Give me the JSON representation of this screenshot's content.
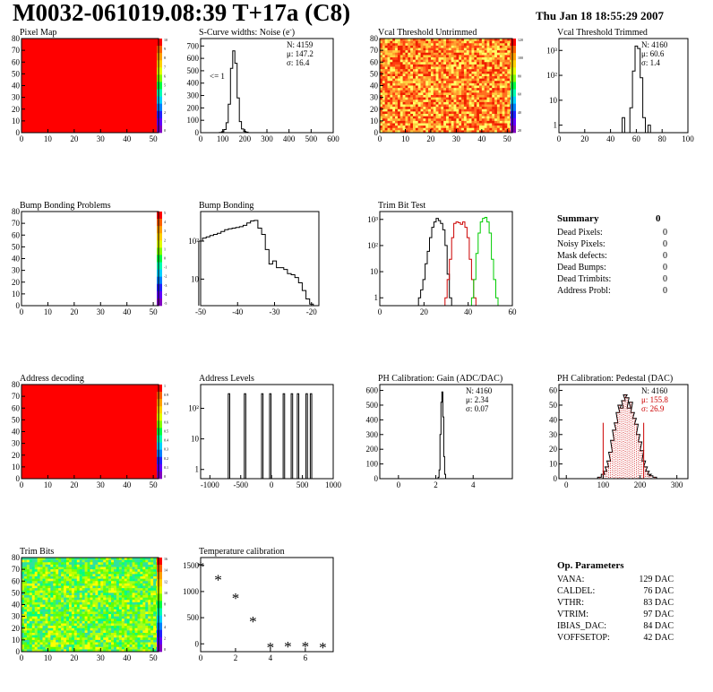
{
  "header": {
    "title": "M0032-061019.08:39 T+17a (C8)",
    "date": "Thu Jan 18 18:55:29 2007"
  },
  "chart_data": [
    {
      "id": "pixel-map",
      "type": "heatmap",
      "title": "Pixel Map",
      "fill": "#ff0000",
      "xticks": [
        "0",
        "10",
        "20",
        "30",
        "40",
        "50"
      ],
      "yticks": [
        "0",
        "10",
        "20",
        "30",
        "40",
        "50",
        "60",
        "70",
        "80"
      ],
      "xlim": [
        0,
        52
      ],
      "ylim": [
        0,
        80
      ],
      "zticks": [
        "10",
        "9",
        "8",
        "7",
        "6",
        "5",
        "4",
        "3",
        "2",
        "1",
        "0"
      ]
    },
    {
      "id": "s-curve",
      "type": "histogram",
      "title": "S-Curve widths: Noise (e",
      "title_sup": "-",
      "title_close": ")",
      "xticks": [
        "0",
        "100",
        "200",
        "300",
        "400",
        "500",
        "600"
      ],
      "yticks": [
        "0",
        "100",
        "200",
        "300",
        "400",
        "500",
        "600",
        "700"
      ],
      "xlim": [
        0,
        600
      ],
      "ylim": [
        0,
        760
      ],
      "stats": [
        "N: 4159",
        "μ: 147.2",
        "σ: 16.4"
      ],
      "annotation": "<= 1",
      "bins": [
        [
          80,
          0
        ],
        [
          90,
          2
        ],
        [
          100,
          8
        ],
        [
          110,
          25
        ],
        [
          120,
          80
        ],
        [
          130,
          230
        ],
        [
          140,
          520
        ],
        [
          150,
          660
        ],
        [
          160,
          560
        ],
        [
          170,
          280
        ],
        [
          180,
          90
        ],
        [
          190,
          30
        ],
        [
          200,
          10
        ],
        [
          210,
          4
        ],
        [
          220,
          0
        ]
      ]
    },
    {
      "id": "vcal-untrimmed",
      "type": "heatmap",
      "title": "Vcal Threshold Untrimmed",
      "xticks": [
        "0",
        "10",
        "20",
        "30",
        "40",
        "50"
      ],
      "yticks": [
        "0",
        "10",
        "20",
        "30",
        "40",
        "50",
        "60",
        "70",
        "80"
      ],
      "xlim": [
        0,
        52
      ],
      "ylim": [
        0,
        80
      ],
      "zticks": [
        "120",
        "100",
        "80",
        "60",
        "40",
        "20"
      ]
    },
    {
      "id": "vcal-trimmed",
      "type": "histogram",
      "log": true,
      "title": "Vcal Threshold Trimmed",
      "xticks": [
        "0",
        "20",
        "40",
        "60",
        "80",
        "100"
      ],
      "yticks": [
        "1",
        "10",
        "10²",
        "10³"
      ],
      "xlim": [
        0,
        100
      ],
      "ylim": [
        0.5,
        3000
      ],
      "stats": [
        "N: 4160",
        "μ: 60.6",
        "σ: 1.4"
      ],
      "bins": [
        [
          50,
          2
        ],
        [
          52,
          0
        ],
        [
          54,
          0
        ],
        [
          56,
          5
        ],
        [
          58,
          150
        ],
        [
          60,
          1500
        ],
        [
          62,
          1200
        ],
        [
          64,
          80
        ],
        [
          66,
          2
        ],
        [
          68,
          0
        ],
        [
          70,
          1
        ],
        [
          72,
          0
        ]
      ]
    },
    {
      "id": "bump-map",
      "type": "heatmap",
      "title": "Bump Bonding Problems",
      "fill": "#ffffff",
      "xticks": [
        "0",
        "10",
        "20",
        "30",
        "40",
        "50"
      ],
      "yticks": [
        "0",
        "10",
        "20",
        "30",
        "40",
        "50",
        "60",
        "70",
        "80"
      ],
      "xlim": [
        0,
        52
      ],
      "ylim": [
        0,
        80
      ],
      "zticks": [
        "5",
        "4",
        "3",
        "2",
        "1",
        "0",
        "-1",
        "-2",
        "-3",
        "-4",
        "-5"
      ]
    },
    {
      "id": "bump-bonding",
      "type": "histogram",
      "log": true,
      "title": "Bump Bonding",
      "xticks": [
        "-50",
        "-40",
        "-30",
        "-20"
      ],
      "yticks": [
        "10",
        "10²"
      ],
      "xlim": [
        -50,
        -18
      ],
      "ylim": [
        2,
        600
      ],
      "bins": [
        [
          -50,
          100
        ],
        [
          -49,
          120
        ],
        [
          -48,
          130
        ],
        [
          -47,
          140
        ],
        [
          -46,
          150
        ],
        [
          -45,
          160
        ],
        [
          -44,
          180
        ],
        [
          -43,
          200
        ],
        [
          -42,
          210
        ],
        [
          -41,
          220
        ],
        [
          -40,
          230
        ],
        [
          -39,
          240
        ],
        [
          -38,
          260
        ],
        [
          -37,
          300
        ],
        [
          -36,
          340
        ],
        [
          -35,
          350
        ],
        [
          -34,
          220
        ],
        [
          -33,
          150
        ],
        [
          -32,
          60
        ],
        [
          -31,
          25
        ],
        [
          -30,
          30
        ],
        [
          -29,
          20
        ],
        [
          -28,
          20
        ],
        [
          -27,
          18
        ],
        [
          -26,
          14
        ],
        [
          -25,
          13
        ],
        [
          -24,
          11
        ],
        [
          -23,
          8
        ],
        [
          -22,
          5
        ],
        [
          -21,
          3
        ],
        [
          -20,
          2.2
        ]
      ]
    },
    {
      "id": "trim-bit-test",
      "type": "histogram",
      "log": true,
      "title": "Trim Bit Test",
      "xticks": [
        "0",
        "20",
        "40",
        "60"
      ],
      "yticks": [
        "1",
        "10",
        "10²",
        "10³"
      ],
      "xlim": [
        0,
        60
      ],
      "ylim": [
        0.5,
        2000
      ],
      "series": [
        {
          "color": "#000000",
          "bins": [
            [
              18,
              1
            ],
            [
              19,
              2
            ],
            [
              20,
              5
            ],
            [
              21,
              20
            ],
            [
              22,
              60
            ],
            [
              23,
              200
            ],
            [
              24,
              500
            ],
            [
              25,
              800
            ],
            [
              26,
              1100
            ],
            [
              27,
              900
            ],
            [
              28,
              700
            ],
            [
              29,
              400
            ],
            [
              30,
              100
            ],
            [
              31,
              8
            ],
            [
              32,
              1
            ]
          ]
        },
        {
          "color": "#cc0000",
          "bins": [
            [
              30,
              1
            ],
            [
              31,
              5
            ],
            [
              32,
              30
            ],
            [
              33,
              200
            ],
            [
              34,
              700
            ],
            [
              35,
              800
            ],
            [
              36,
              750
            ],
            [
              37,
              650
            ],
            [
              38,
              800
            ],
            [
              39,
              500
            ],
            [
              40,
              200
            ],
            [
              41,
              30
            ],
            [
              42,
              5
            ],
            [
              43,
              1
            ]
          ]
        },
        {
          "color": "#00cc00",
          "bins": [
            [
              42,
              1
            ],
            [
              43,
              5
            ],
            [
              44,
              50
            ],
            [
              45,
              300
            ],
            [
              46,
              800
            ],
            [
              47,
              1100
            ],
            [
              48,
              1200
            ],
            [
              49,
              800
            ],
            [
              50,
              300
            ],
            [
              51,
              30
            ],
            [
              52,
              5
            ],
            [
              53,
              1
            ]
          ]
        }
      ]
    },
    {
      "id": "address-map",
      "type": "heatmap",
      "title": "Address decoding",
      "fill": "#ff0000",
      "xticks": [
        "0",
        "10",
        "20",
        "30",
        "40",
        "50"
      ],
      "yticks": [
        "0",
        "10",
        "20",
        "30",
        "40",
        "50",
        "60",
        "70",
        "80"
      ],
      "xlim": [
        0,
        52
      ],
      "ylim": [
        0,
        80
      ],
      "zticks": [
        "1",
        "0.9",
        "0.8",
        "0.7",
        "0.6",
        "0.5",
        "0.4",
        "0.3",
        "0.2",
        "0.1",
        "0"
      ]
    },
    {
      "id": "address-levels",
      "type": "spikes",
      "log": true,
      "title": "Address Levels",
      "xticks": [
        "-1000",
        "-500",
        "0",
        "500",
        "1000"
      ],
      "yticks": [
        "1",
        "10",
        "10²"
      ],
      "xlim": [
        -1150,
        1000
      ],
      "ylim": [
        0.5,
        600
      ],
      "peaks": [
        -690,
        -430,
        -150,
        -20,
        200,
        330,
        430,
        570,
        640
      ]
    },
    {
      "id": "ph-gain",
      "type": "histogram",
      "title": "PH Calibration: Gain (ADC/DAC)",
      "xticks": [
        "0",
        "2",
        "4"
      ],
      "yticks": [
        "0",
        "100",
        "200",
        "300",
        "400",
        "500",
        "600"
      ],
      "xlim": [
        -1,
        6.1
      ],
      "ylim": [
        0,
        640
      ],
      "stats": [
        "N: 4160",
        "μ: 2.34",
        "σ: 0.07"
      ],
      "bins": [
        [
          2.1,
          0
        ],
        [
          2.15,
          10
        ],
        [
          2.2,
          60
        ],
        [
          2.25,
          300
        ],
        [
          2.3,
          520
        ],
        [
          2.35,
          590
        ],
        [
          2.4,
          420
        ],
        [
          2.45,
          150
        ],
        [
          2.5,
          30
        ],
        [
          2.55,
          0
        ]
      ]
    },
    {
      "id": "ph-pedestal",
      "type": "histogram",
      "title": "PH Calibration: Pedestal (DAC)",
      "xticks": [
        "0",
        "100",
        "200",
        "300"
      ],
      "yticks": [
        "0",
        "10",
        "20",
        "30",
        "40",
        "50",
        "60"
      ],
      "xlim": [
        -20,
        330
      ],
      "ylim": [
        0,
        64
      ],
      "stats": [
        "N: 4160",
        "μ: 155.8",
        "σ: 26.9"
      ],
      "fit_color": "#cc0000",
      "bins": [
        [
          90,
          1
        ],
        [
          100,
          3
        ],
        [
          105,
          5
        ],
        [
          110,
          8
        ],
        [
          115,
          12
        ],
        [
          120,
          18
        ],
        [
          125,
          26
        ],
        [
          130,
          33
        ],
        [
          135,
          38
        ],
        [
          140,
          45
        ],
        [
          145,
          50
        ],
        [
          150,
          48
        ],
        [
          155,
          53
        ],
        [
          160,
          57
        ],
        [
          165,
          55
        ],
        [
          170,
          48
        ],
        [
          175,
          52
        ],
        [
          180,
          45
        ],
        [
          185,
          41
        ],
        [
          190,
          37
        ],
        [
          195,
          30
        ],
        [
          200,
          25
        ],
        [
          205,
          19
        ],
        [
          210,
          12
        ],
        [
          215,
          8
        ],
        [
          220,
          5
        ],
        [
          225,
          3
        ],
        [
          230,
          2
        ],
        [
          240,
          1
        ],
        [
          250,
          0
        ]
      ]
    },
    {
      "id": "trim-bits",
      "type": "heatmap",
      "title": "Trim Bits",
      "xticks": [
        "0",
        "10",
        "20",
        "30",
        "40",
        "50"
      ],
      "yticks": [
        "0",
        "10",
        "20",
        "30",
        "40",
        "50",
        "60",
        "70",
        "80"
      ],
      "xlim": [
        0,
        52
      ],
      "ylim": [
        0,
        80
      ],
      "zticks": [
        "16",
        "14",
        "12",
        "10",
        "8",
        "6",
        "4",
        "2",
        "0"
      ]
    },
    {
      "id": "temperature",
      "type": "scatter",
      "title": "Temperature calibration",
      "xticks": [
        "0",
        "2",
        "4",
        "6"
      ],
      "yticks": [
        "0",
        "500",
        "1000",
        "1500"
      ],
      "xlim": [
        0,
        7.6
      ],
      "ylim": [
        -150,
        1650
      ],
      "x": [
        0,
        1,
        2,
        3,
        4,
        5,
        6,
        7
      ],
      "y": [
        1500,
        1250,
        900,
        450,
        -50,
        -30,
        -30,
        -50
      ]
    }
  ],
  "summary": {
    "title": "Summary",
    "value": "0",
    "rows": [
      {
        "label": "Dead Pixels:",
        "value": "0"
      },
      {
        "label": "Noisy Pixels:",
        "value": "0"
      },
      {
        "label": "Mask defects:",
        "value": "0"
      },
      {
        "label": "Dead Bumps:",
        "value": "0"
      },
      {
        "label": "Dead Trimbits:",
        "value": "0"
      },
      {
        "label": "Address Probl:",
        "value": "0"
      }
    ]
  },
  "params": {
    "title": "Op. Parameters",
    "rows": [
      {
        "label": "VANA:",
        "value": "129 DAC"
      },
      {
        "label": "CALDEL:",
        "value": "76 DAC"
      },
      {
        "label": "VTHR:",
        "value": "83 DAC"
      },
      {
        "label": "VTRIM:",
        "value": "97 DAC"
      },
      {
        "label": "IBIAS_DAC:",
        "value": "84 DAC"
      },
      {
        "label": "VOFFSETOP:",
        "value": "42 DAC"
      }
    ]
  }
}
